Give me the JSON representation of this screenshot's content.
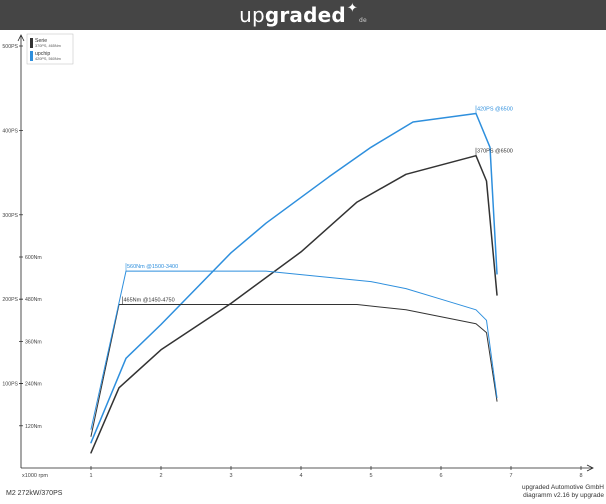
{
  "header": {
    "brand_light": "up",
    "brand_bold": "graded",
    "brand_star": "✦",
    "brand_tld": "de"
  },
  "footer": {
    "left": "M2  272kW/370PS",
    "right_line1": "upgraded Automotive GmbH",
    "right_line2": "diagramm v2.16 by upgrade"
  },
  "chart_data": {
    "type": "line",
    "xlabel": "x1000 rpm",
    "xlim": [
      0,
      8
    ],
    "x_ticks": [
      1,
      2,
      3,
      4,
      5,
      6,
      7,
      8
    ],
    "power_ylim": [
      0,
      500
    ],
    "power_ticks": [
      {
        "value": 100,
        "label": "100PS"
      },
      {
        "value": 200,
        "label": "200PS"
      },
      {
        "value": 300,
        "label": "300PS"
      },
      {
        "value": 400,
        "label": "400PS"
      },
      {
        "value": 500,
        "label": "500PS"
      }
    ],
    "torque_ticks": [
      {
        "value": 120,
        "label": "120Nm"
      },
      {
        "value": 240,
        "label": "240Nm"
      },
      {
        "value": 360,
        "label": "360Nm"
      },
      {
        "value": 480,
        "label": "480Nm"
      },
      {
        "value": 600,
        "label": "600Nm"
      }
    ],
    "torque_per_power": 2.4,
    "legend": [
      {
        "name": "Serie",
        "sub": "370PS, 465Nm",
        "color": "#333333"
      },
      {
        "name": "upchip",
        "sub": "420PS, 560Nm",
        "color": "#2e8fdd"
      }
    ],
    "series": [
      {
        "name": "Serie",
        "kind": "power",
        "color": "#333333",
        "points": [
          [
            1,
            18
          ],
          [
            1.4,
            95
          ],
          [
            2,
            140
          ],
          [
            3,
            195
          ],
          [
            4,
            256
          ],
          [
            4.8,
            315
          ],
          [
            5.5,
            348
          ],
          [
            6.5,
            370
          ],
          [
            6.65,
            340
          ],
          [
            6.8,
            205
          ]
        ]
      },
      {
        "name": "upchip",
        "kind": "power",
        "color": "#2e8fdd",
        "points": [
          [
            1,
            30
          ],
          [
            1.5,
            130
          ],
          [
            2,
            170
          ],
          [
            3,
            255
          ],
          [
            3.5,
            290
          ],
          [
            4.4,
            345
          ],
          [
            5,
            380
          ],
          [
            5.6,
            410
          ],
          [
            6.5,
            420
          ],
          [
            6.7,
            380
          ],
          [
            6.8,
            230
          ]
        ]
      },
      {
        "name": "Serie",
        "kind": "torque",
        "color": "#333333",
        "points": [
          [
            1,
            90
          ],
          [
            1.4,
            465
          ],
          [
            1.5,
            465
          ],
          [
            2,
            465
          ],
          [
            3,
            465
          ],
          [
            4,
            465
          ],
          [
            4.8,
            465
          ],
          [
            5.5,
            450
          ],
          [
            6,
            430
          ],
          [
            6.5,
            410
          ],
          [
            6.65,
            385
          ],
          [
            6.8,
            190
          ]
        ]
      },
      {
        "name": "upchip",
        "kind": "torque",
        "color": "#2e8fdd",
        "points": [
          [
            1,
            110
          ],
          [
            1.5,
            560
          ],
          [
            2,
            560
          ],
          [
            3,
            560
          ],
          [
            3.5,
            560
          ],
          [
            4,
            550
          ],
          [
            5,
            530
          ],
          [
            5.5,
            510
          ],
          [
            6,
            480
          ],
          [
            6.5,
            450
          ],
          [
            6.65,
            420
          ],
          [
            6.8,
            200
          ]
        ]
      }
    ],
    "annotations": [
      {
        "text": "420PS @6500",
        "x": 6.5,
        "y": 420,
        "kind": "power",
        "color": "#2e8fdd"
      },
      {
        "text": "370PS @6500",
        "x": 6.5,
        "y": 370,
        "kind": "power",
        "color": "#333333"
      },
      {
        "text": "560Nm @1500-3400",
        "x": 1.5,
        "y": 560,
        "kind": "torque",
        "color": "#2e8fdd"
      },
      {
        "text": "465Nm @1450-4750",
        "x": 1.45,
        "y": 465,
        "kind": "torque",
        "color": "#333333"
      }
    ]
  }
}
